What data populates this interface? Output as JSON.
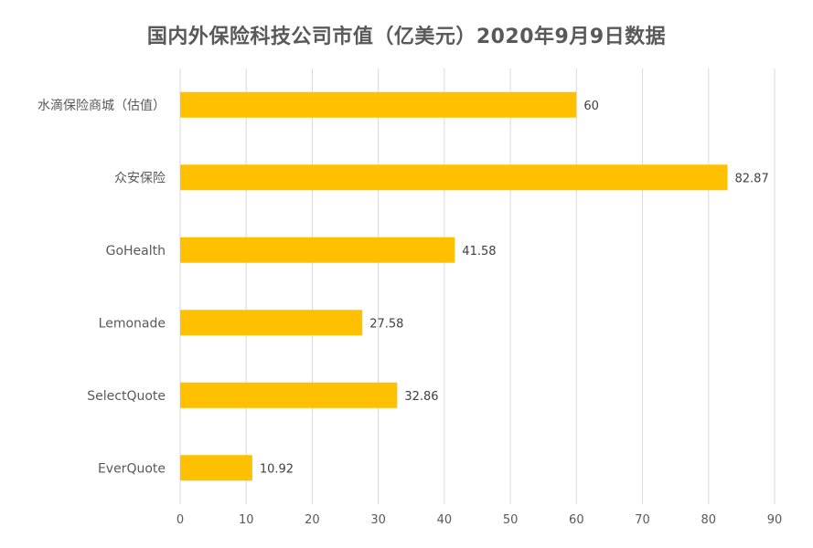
{
  "chart_data": {
    "type": "bar",
    "orientation": "horizontal",
    "title": "国内外保险科技公司市值（亿美元）2020年9月9日数据",
    "categories": [
      "水滴保险商城（估值）",
      "众安保险",
      "GoHealth",
      "Lemonade",
      "SelectQuote",
      "EverQuote"
    ],
    "values": [
      60,
      82.87,
      41.58,
      27.58,
      32.86,
      10.92
    ],
    "data_labels": [
      "60",
      "82.87",
      "41.58",
      "27.58",
      "32.86",
      "10.92"
    ],
    "xlim": [
      0,
      90
    ],
    "xticks": [
      "0",
      "10",
      "20",
      "30",
      "40",
      "50",
      "60",
      "70",
      "80",
      "90"
    ],
    "grid": true,
    "legend": "none",
    "bar_color": "#FFC000"
  }
}
